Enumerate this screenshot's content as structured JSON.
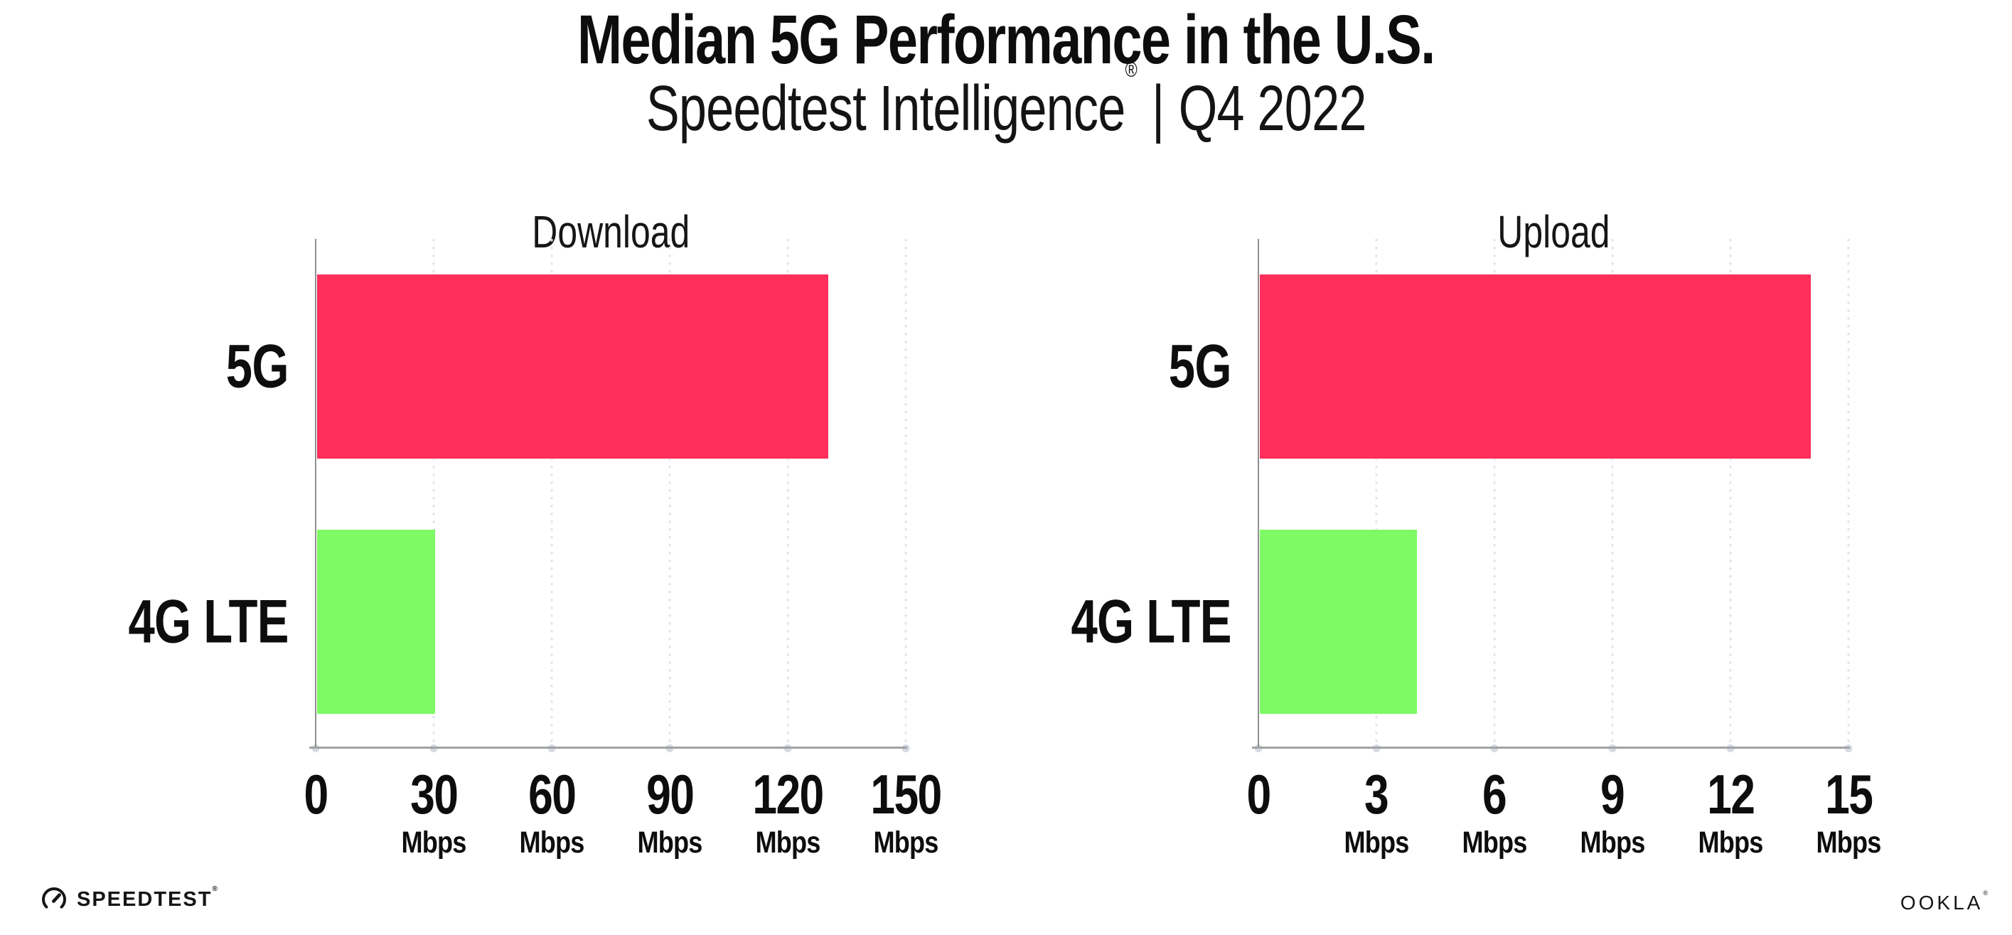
{
  "header": {
    "title": "Median 5G Performance in the U.S.",
    "subtitle_brand": "Speedtest Intelligence",
    "subtitle_trademark": "®",
    "subtitle_divider": "|",
    "subtitle_period": "Q4 2022"
  },
  "colors": {
    "bar_5g": "#ff2e5a",
    "bar_4g": "#7dfa64",
    "gridline": "#e1e4ed",
    "tick_dot": "#d6dae4",
    "axis_y": "#8f8f8f",
    "axis_x": "#a3a3a3",
    "text": "#0d0d0d"
  },
  "chart_data": [
    {
      "type": "bar",
      "orientation": "horizontal",
      "title": "Download",
      "categories": [
        "5G",
        "4G LTE"
      ],
      "values": [
        130,
        30
      ],
      "unit": "Mbps",
      "xlim": [
        0,
        150
      ],
      "xticks": [
        0,
        30,
        60,
        90,
        120,
        150
      ],
      "tick_unit": "Mbps",
      "bar_colors": [
        "#ff2e5a",
        "#7dfa64"
      ],
      "grid": "vertical dotted",
      "legend": false
    },
    {
      "type": "bar",
      "orientation": "horizontal",
      "title": "Upload",
      "categories": [
        "5G",
        "4G LTE"
      ],
      "values": [
        14,
        4
      ],
      "unit": "Mbps",
      "xlim": [
        0,
        15
      ],
      "xticks": [
        0,
        3,
        6,
        9,
        12,
        15
      ],
      "tick_unit": "Mbps",
      "bar_colors": [
        "#ff2e5a",
        "#7dfa64"
      ],
      "grid": "vertical dotted",
      "legend": false
    }
  ],
  "footer": {
    "speedtest_wordmark": "SPEEDTEST",
    "speedtest_trademark": "®",
    "ookla_wordmark": "OOKLA",
    "ookla_trademark": "®"
  }
}
